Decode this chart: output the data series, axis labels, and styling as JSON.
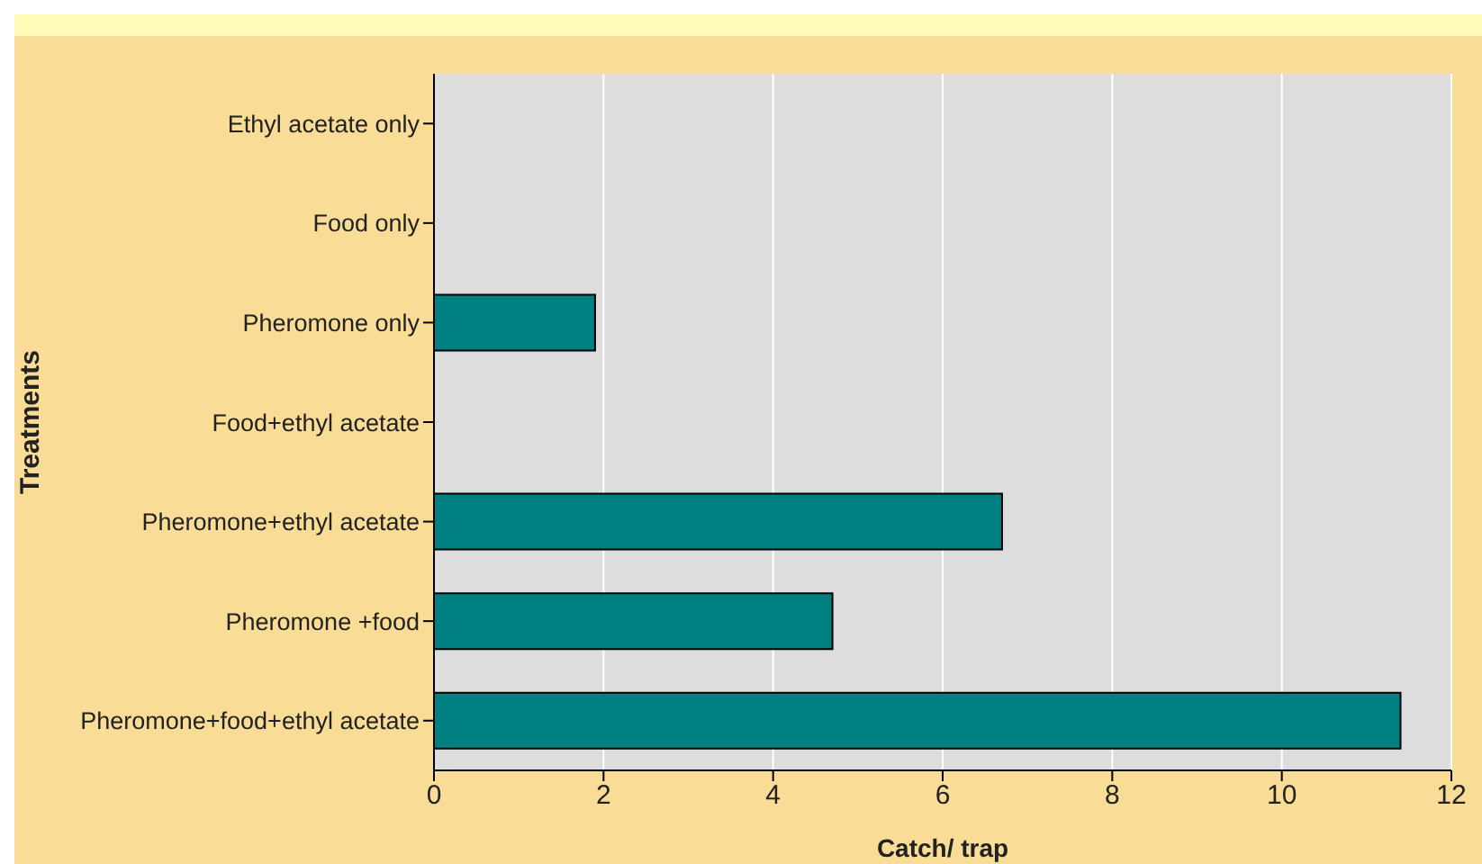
{
  "chart_data": {
    "type": "bar",
    "orientation": "horizontal",
    "xlabel": "Catch/ trap",
    "ylabel": "Treatments",
    "categories": [
      "Ethyl acetate only",
      "Food only",
      "Pheromone only",
      "Food+ethyl acetate",
      "Pheromone+ethyl acetate",
      "Pheromone +food",
      "Pheromone+food+ethyl acetate"
    ],
    "values": [
      0,
      0,
      1.9,
      0,
      6.7,
      4.7,
      11.4
    ],
    "color": "#008080",
    "xlim": [
      0,
      12
    ],
    "xticks": [
      0,
      2,
      4,
      6,
      8,
      10,
      12
    ],
    "grid": "x",
    "legend": false
  }
}
